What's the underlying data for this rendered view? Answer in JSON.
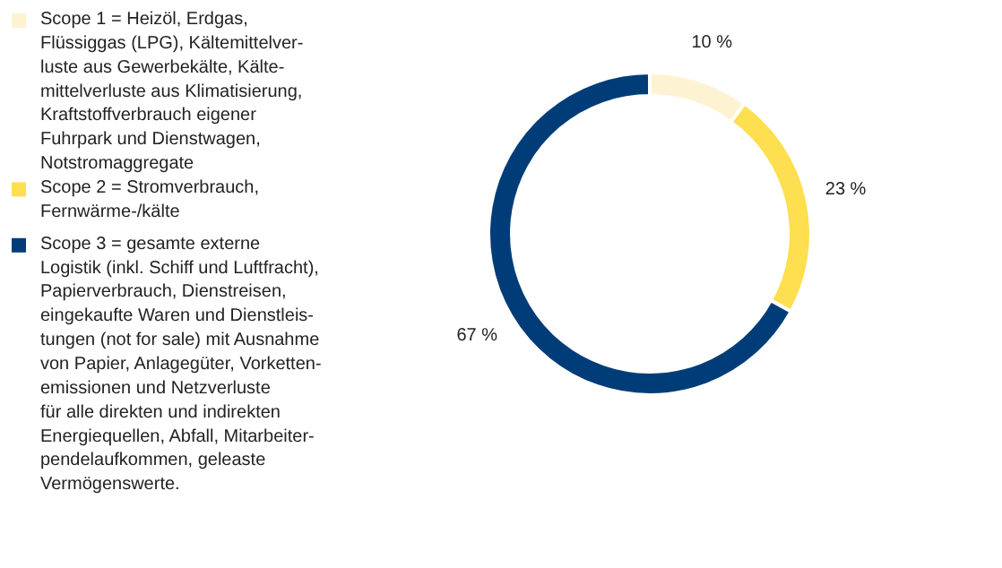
{
  "chart_data": {
    "type": "donut",
    "categories": [
      "Scope 1 = Heizöl, Erdgas,\nFlüssiggas (LPG), Kältemittelver-\nluste aus Gewerbekälte, Kälte-\nmittelverluste aus Klimatisierung,\nKraftstoffverbrauch eigener\nFuhrpark und Dienstwagen,\nNotstromaggregate",
      "Scope 2 = Stromverbrauch,\nFernwärme-/kälte",
      "Scope 3 = gesamte externe\nLogistik (inkl. Schiff und Luftfracht),\nPapierverbrauch, Dienstreisen,\neingekaufte Waren und Dienstleis-\ntungen (not for sale) mit Ausnahme\nvon Papier, Anlagegüter, Vorketten-\nemissionen und Netzverluste\nfür alle direkten und indirekten\nEnergiequellen, Abfall, Mitarbeiter-\npendelaufkommen, geleaste\nVermögenswerte."
    ],
    "values": [
      10,
      23,
      67
    ],
    "colors": [
      "#fdf3d3",
      "#fddf4f",
      "#003d78"
    ],
    "value_labels": [
      "10 %",
      "23 %",
      "67 %"
    ],
    "legend": "left"
  }
}
